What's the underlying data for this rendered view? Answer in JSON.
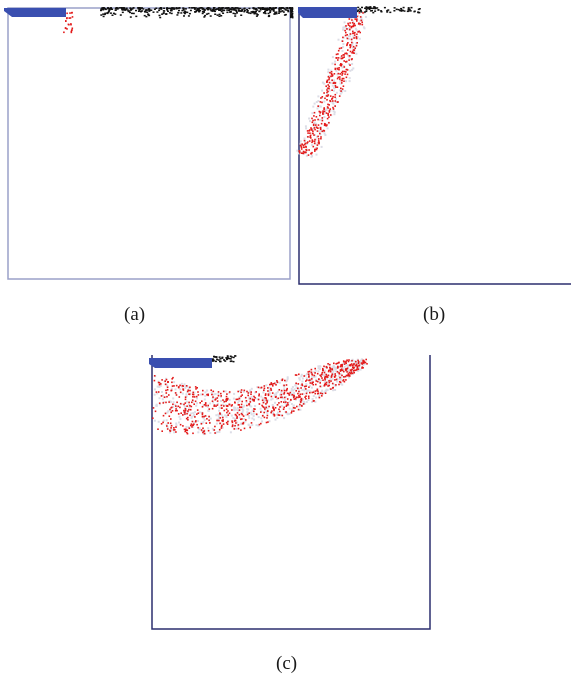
{
  "panels": [
    {
      "id": "a",
      "caption": "(a)",
      "particle_color": "#e31b1b",
      "tank_color": "#9aa0c8",
      "paddle_color": "#3a4fb0"
    },
    {
      "id": "b",
      "caption": "(b)",
      "particle_color": "#e31b1b",
      "tank_color": "#2b2f6e",
      "paddle_color": "#3a4fb0"
    },
    {
      "id": "c",
      "caption": "(c)",
      "particle_color": "#e31b1b",
      "tank_color": "#2b2f6e",
      "paddle_color": "#3a4fb0"
    }
  ],
  "colors": {
    "surface_particles": "#111111",
    "water_haze": "#dcdde6"
  }
}
